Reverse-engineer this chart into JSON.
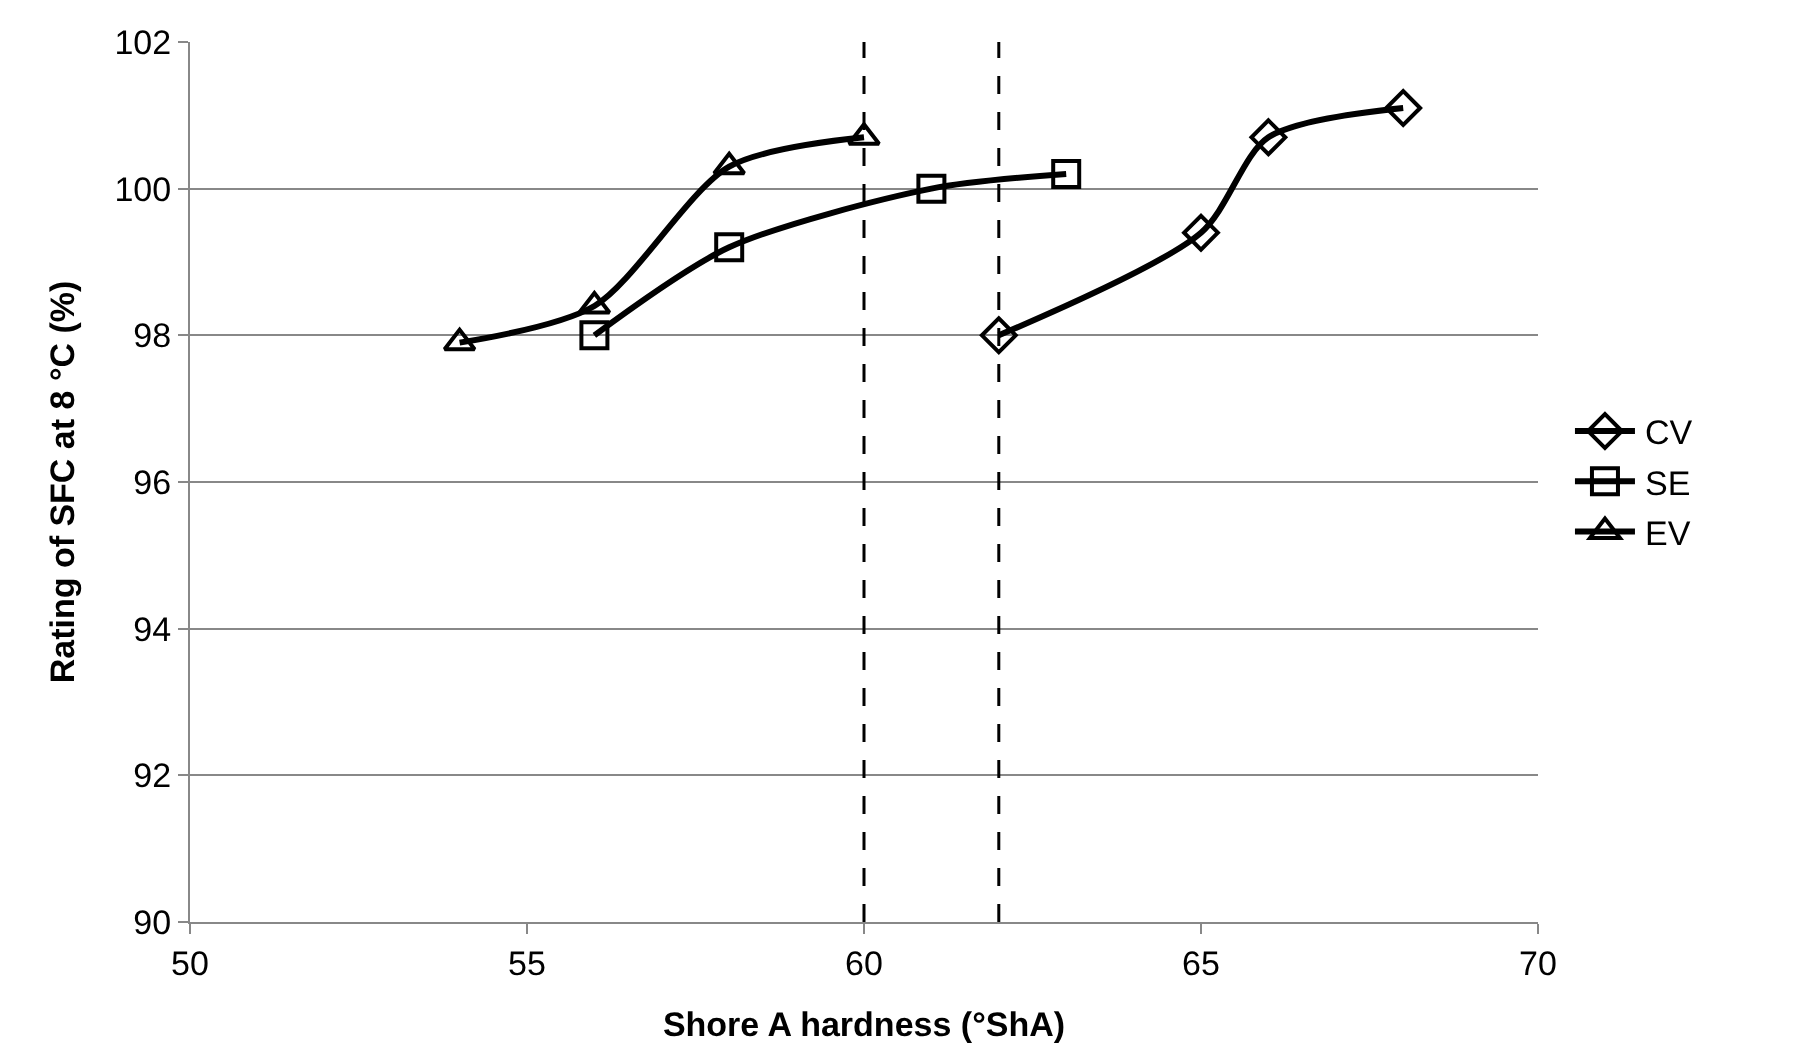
{
  "chart_data": {
    "type": "line",
    "xlabel": "Shore A hardness (°ShA)",
    "ylabel": "Rating of SFC at 8 °C (%)",
    "xlim": [
      50,
      70
    ],
    "xticks": [
      50,
      55,
      60,
      65,
      70
    ],
    "ylim": [
      90,
      102
    ],
    "yticks": [
      90,
      92,
      94,
      96,
      98,
      100,
      102
    ],
    "grid": "y",
    "legend": "right",
    "line_style": "solid",
    "series": [
      {
        "name": "CV",
        "color": "#000000",
        "marker": "diamond",
        "x": [
          62,
          65,
          66,
          68
        ],
        "values": [
          98.0,
          99.4,
          100.7,
          101.1
        ]
      },
      {
        "name": "SE",
        "color": "#000000",
        "marker": "square",
        "x": [
          56,
          58,
          61,
          63
        ],
        "values": [
          98.0,
          99.2,
          100.0,
          100.2
        ]
      },
      {
        "name": "EV",
        "color": "#000000",
        "marker": "triangle",
        "x": [
          54,
          56,
          58,
          60
        ],
        "values": [
          97.9,
          98.4,
          100.3,
          100.7
        ]
      }
    ],
    "ref_lines": [
      {
        "axis": "x",
        "value": 60,
        "label": null,
        "color": "#000000",
        "line_style": "dashed"
      },
      {
        "axis": "x",
        "value": 62,
        "label": null,
        "color": "#000000",
        "line_style": "dashed"
      }
    ]
  }
}
